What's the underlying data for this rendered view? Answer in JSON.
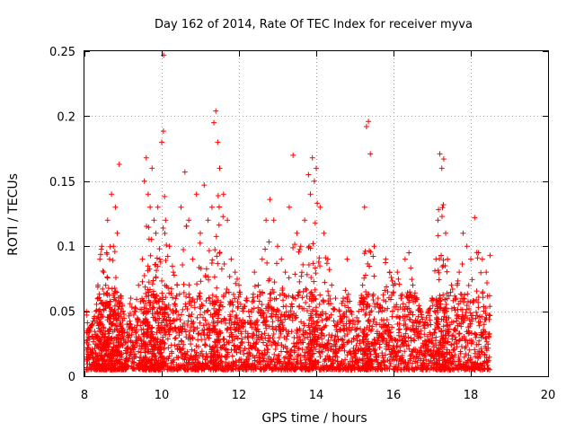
{
  "chart_data": {
    "type": "scatter",
    "title": "Day 162 of 2014, Rate Of TEC Index for receiver myva",
    "xlabel": "GPS time / hours",
    "ylabel": "ROTI / TECUs",
    "xlim": [
      8,
      20
    ],
    "ylim": [
      0,
      0.25
    ],
    "x_ticks": [
      "8",
      "10",
      "12",
      "14",
      "16",
      "18",
      "20"
    ],
    "y_ticks": [
      "0",
      "0.05",
      "0.1",
      "0.15",
      "0.2",
      "0.25"
    ],
    "grid": true,
    "marker": "+",
    "color": "#ff0000",
    "series": [
      {
        "name": "ROTI",
        "x": [
          8.05,
          8.1,
          8.2,
          8.3,
          8.35,
          8.4,
          8.45,
          8.5,
          8.55,
          8.6,
          8.65,
          8.7,
          8.75,
          8.8,
          8.85,
          8.9,
          8.95,
          9.0,
          9.1,
          9.2,
          9.3,
          9.4,
          9.5,
          9.55,
          9.6,
          9.65,
          9.7,
          9.75,
          9.8,
          9.85,
          9.9,
          9.95,
          10.0,
          10.05,
          10.1,
          10.2,
          10.3,
          10.4,
          10.5,
          10.6,
          10.7,
          10.8,
          10.9,
          11.0,
          11.1,
          11.2,
          11.3,
          11.35,
          11.4,
          11.45,
          11.5,
          11.6,
          11.7,
          11.8,
          11.9,
          12.0,
          12.1,
          12.2,
          12.3,
          12.4,
          12.5,
          12.6,
          12.7,
          12.8,
          12.9,
          13.0,
          13.1,
          13.2,
          13.3,
          13.4,
          13.5,
          13.6,
          13.7,
          13.8,
          13.85,
          13.9,
          13.95,
          14.0,
          14.1,
          14.2,
          14.3,
          14.4,
          14.5,
          14.6,
          14.7,
          14.8,
          14.9,
          15.0,
          15.1,
          15.2,
          15.25,
          15.3,
          15.35,
          15.4,
          15.5,
          15.6,
          15.7,
          15.8,
          15.9,
          16.0,
          16.1,
          16.2,
          16.3,
          16.4,
          16.5,
          16.6,
          16.7,
          16.8,
          16.9,
          17.0,
          17.1,
          17.15,
          17.2,
          17.25,
          17.3,
          17.35,
          17.4,
          17.5,
          17.6,
          17.7,
          17.8,
          17.9,
          18.0,
          18.1,
          18.2,
          18.3,
          18.4,
          18.5
        ],
        "y": [
          0.05,
          0.035,
          0.04,
          0.05,
          0.07,
          0.09,
          0.1,
          0.08,
          0.07,
          0.12,
          0.09,
          0.14,
          0.1,
          0.13,
          0.11,
          0.163,
          0.06,
          0.05,
          0.04,
          0.06,
          0.05,
          0.07,
          0.09,
          0.15,
          0.168,
          0.14,
          0.13,
          0.16,
          0.12,
          0.11,
          0.13,
          0.09,
          0.18,
          0.247,
          0.12,
          0.1,
          0.08,
          0.07,
          0.13,
          0.157,
          0.12,
          0.09,
          0.14,
          0.11,
          0.147,
          0.12,
          0.13,
          0.195,
          0.204,
          0.18,
          0.16,
          0.14,
          0.12,
          0.09,
          0.08,
          0.07,
          0.05,
          0.06,
          0.04,
          0.08,
          0.07,
          0.09,
          0.12,
          0.136,
          0.12,
          0.1,
          0.09,
          0.08,
          0.13,
          0.17,
          0.11,
          0.1,
          0.12,
          0.155,
          0.14,
          0.168,
          0.15,
          0.16,
          0.13,
          0.11,
          0.09,
          0.07,
          0.06,
          0.05,
          0.06,
          0.09,
          0.05,
          0.04,
          0.05,
          0.07,
          0.13,
          0.192,
          0.196,
          0.171,
          0.1,
          0.06,
          0.05,
          0.09,
          0.08,
          0.07,
          0.08,
          0.06,
          0.09,
          0.095,
          0.07,
          0.06,
          0.05,
          0.04,
          0.05,
          0.06,
          0.09,
          0.12,
          0.171,
          0.16,
          0.167,
          0.11,
          0.09,
          0.07,
          0.06,
          0.08,
          0.11,
          0.1,
          0.09,
          0.122,
          0.095,
          0.09,
          0.08,
          0.093
        ]
      }
    ]
  }
}
